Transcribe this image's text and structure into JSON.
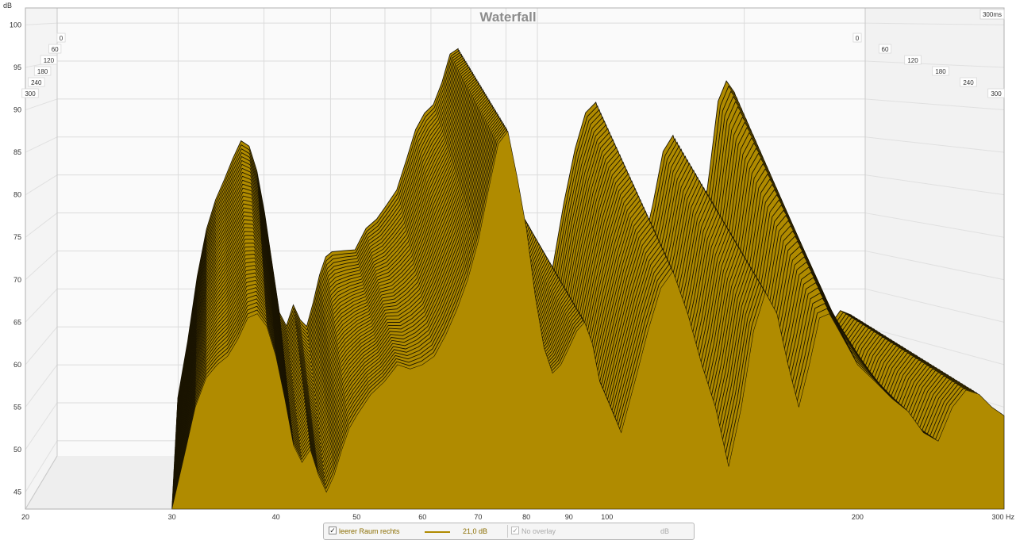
{
  "chart_data": {
    "type": "area",
    "title": "Waterfall",
    "y_unit": "dB",
    "x_unit": "Hz",
    "time_unit": "ms",
    "time_end_label": "300ms",
    "x_scale": "log",
    "xlim": [
      20,
      300
    ],
    "ylim": [
      43,
      102
    ],
    "x_ticks": [
      20,
      30,
      40,
      50,
      60,
      70,
      80,
      90,
      100,
      200,
      300
    ],
    "x_tick_labels": [
      "20",
      "30",
      "40",
      "50",
      "60",
      "70",
      "80",
      "90",
      "100",
      "200",
      "300 Hz"
    ],
    "y_ticks": [
      45,
      50,
      55,
      60,
      65,
      70,
      75,
      80,
      85,
      90,
      95,
      100
    ],
    "time_ticks": [
      0,
      60,
      120,
      180,
      240,
      300
    ],
    "grid": true,
    "fill_color": "#b08b00",
    "series": [
      {
        "name": "leerer Raum rechts",
        "time_ms": 0,
        "x": [
          20,
          26,
          29,
          30,
          31,
          32,
          33,
          34,
          35,
          36,
          37,
          38,
          39,
          40,
          41,
          42,
          43,
          44,
          45,
          46,
          47,
          48,
          49,
          50,
          52,
          54,
          56,
          58,
          60,
          62,
          64,
          66,
          68,
          70,
          72,
          74,
          76,
          78,
          80,
          82,
          84,
          86,
          88,
          90,
          92,
          94,
          96,
          98,
          100,
          104,
          108,
          112,
          116,
          120,
          125,
          130,
          135,
          140,
          145,
          150,
          155,
          160,
          165,
          170,
          175,
          180,
          185,
          190,
          195,
          200,
          210,
          220,
          230,
          240,
          250,
          260,
          270,
          280,
          290,
          300
        ],
        "y": [
          null,
          null,
          null,
          43,
          49,
          55,
          58.5,
          60,
          61,
          63,
          65.5,
          66,
          64.5,
          61,
          56,
          50.5,
          48.5,
          50,
          47,
          45,
          47,
          50,
          52.5,
          54,
          56.5,
          58,
          60,
          59.5,
          60,
          61,
          63.5,
          66.5,
          70,
          74.5,
          80.5,
          86,
          87.5,
          82,
          76,
          68,
          62,
          59,
          60,
          62,
          64,
          65,
          62.5,
          58,
          56,
          52,
          58,
          64,
          69,
          71,
          66,
          60,
          55,
          48,
          55,
          64,
          68.5,
          66,
          60,
          55,
          60,
          65.5,
          66,
          64,
          62,
          60,
          58,
          56,
          54.5,
          52,
          51,
          55,
          57,
          56.5,
          55,
          54
        ]
      }
    ],
    "legend": {
      "entry_label": "leerer Raum rechts",
      "entry_value": "21,0 dB",
      "overlay_label": "No overlay",
      "overlay_unit": "dB"
    }
  },
  "legend_ui": {
    "primary_checkbox_checked": true,
    "overlay_checkbox_checked": true
  }
}
